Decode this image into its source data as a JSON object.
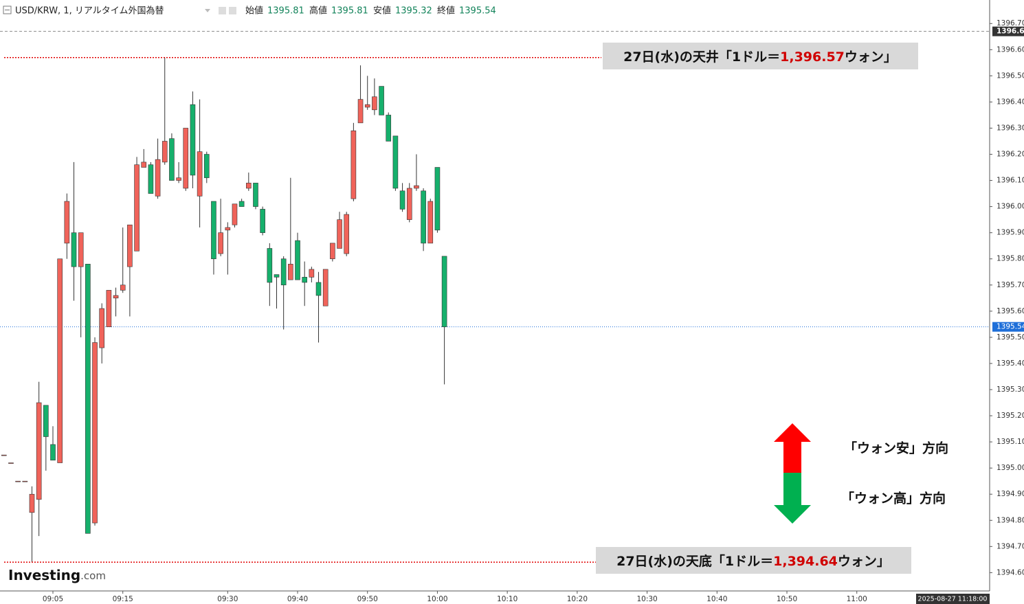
{
  "header": {
    "symbol": "USD/KRW, 1, リアルタイム外国為替",
    "open_label": "始値",
    "open": 1395.81,
    "high_label": "高値",
    "high": 1395.81,
    "low_label": "安値",
    "low": 1395.32,
    "close_label": "終値",
    "close": 1395.54
  },
  "watermark": {
    "brand": "Investing",
    "suffix": ".com"
  },
  "chart_data": {
    "type": "candlestick",
    "x": [
      -2,
      -1,
      0,
      1,
      2,
      3,
      4,
      5,
      6,
      7,
      8,
      9,
      10,
      11,
      12,
      13,
      14,
      15,
      16,
      17,
      18,
      19,
      20,
      21,
      22,
      23,
      24,
      25,
      26,
      27,
      28,
      29,
      30,
      31,
      32,
      33,
      34,
      35,
      36,
      37,
      38,
      39,
      40,
      41,
      42,
      43,
      44,
      45,
      46,
      47,
      48,
      49,
      50,
      51,
      52,
      53,
      54,
      55,
      56,
      57,
      58,
      59,
      60,
      61
    ],
    "open": [
      1395.05,
      1395.02,
      1394.95,
      1394.95,
      1394.83,
      1394.88,
      1395.24,
      1395.09,
      1395.02,
      1395.86,
      1395.9,
      1395.77,
      1395.78,
      1394.79,
      1395.46,
      1395.54,
      1395.65,
      1395.68,
      1395.77,
      1395.83,
      1396.15,
      1396.16,
      1396.04,
      1396.17,
      1396.26,
      1396.1,
      1396.07,
      1396.39,
      1396.04,
      1396.2,
      1396.02,
      1395.82,
      1395.91,
      1395.93,
      1396.02,
      1396.07,
      1396.09,
      1395.99,
      1395.84,
      1395.74,
      1395.8,
      1395.72,
      1395.87,
      1395.73,
      1395.73,
      1395.71,
      1395.62,
      1395.8,
      1395.84,
      1395.82,
      1396.03,
      1396.32,
      1396.38,
      1396.37,
      1396.46,
      1396.35,
      1396.27,
      1396.06,
      1395.95,
      1396.07,
      1396.06,
      1395.86,
      1396.15,
      1395.81
    ],
    "high": [
      1395.05,
      1395.02,
      1394.95,
      1394.95,
      1394.93,
      1395.33,
      1395.24,
      1395.16,
      1395.8,
      1396.05,
      1396.17,
      1395.9,
      1395.78,
      1395.5,
      1395.63,
      1395.68,
      1395.69,
      1395.92,
      1395.93,
      1396.19,
      1396.22,
      1396.17,
      1396.26,
      1396.57,
      1396.28,
      1396.17,
      1396.3,
      1396.44,
      1396.41,
      1396.21,
      1396.02,
      1396.03,
      1395.94,
      1396.01,
      1396.03,
      1396.13,
      1396.09,
      1396.0,
      1395.86,
      1395.74,
      1395.81,
      1396.11,
      1395.9,
      1395.79,
      1395.77,
      1395.75,
      1395.76,
      1395.86,
      1395.98,
      1395.98,
      1396.32,
      1396.54,
      1396.5,
      1396.49,
      1396.46,
      1396.36,
      1396.27,
      1396.09,
      1396.09,
      1396.2,
      1396.07,
      1396.03,
      1396.15,
      1395.81
    ],
    "low": [
      1395.05,
      1395.02,
      1394.95,
      1394.95,
      1394.64,
      1394.74,
      1394.99,
      1395.03,
      1395.02,
      1395.8,
      1395.64,
      1395.5,
      1394.75,
      1394.78,
      1395.4,
      1395.54,
      1395.58,
      1395.67,
      1395.58,
      1395.83,
      1396.15,
      1396.05,
      1396.03,
      1396.16,
      1396.1,
      1396.09,
      1396.06,
      1396.07,
      1395.92,
      1396.09,
      1395.74,
      1395.81,
      1395.74,
      1395.92,
      1396.0,
      1396.06,
      1395.99,
      1395.89,
      1395.62,
      1395.61,
      1395.53,
      1395.72,
      1395.72,
      1395.62,
      1395.71,
      1395.48,
      1395.62,
      1395.79,
      1395.84,
      1395.81,
      1396.02,
      1396.32,
      1396.37,
      1396.35,
      1396.35,
      1396.25,
      1396.06,
      1395.98,
      1395.94,
      1396.06,
      1395.83,
      1395.86,
      1395.9,
      1395.32
    ],
    "close": [
      1395.05,
      1395.02,
      1394.95,
      1394.95,
      1394.9,
      1395.25,
      1395.12,
      1395.03,
      1395.8,
      1396.02,
      1395.77,
      1395.9,
      1394.75,
      1395.48,
      1395.61,
      1395.68,
      1395.66,
      1395.7,
      1395.93,
      1396.16,
      1396.17,
      1396.05,
      1396.18,
      1396.25,
      1396.1,
      1396.11,
      1396.3,
      1396.12,
      1396.21,
      1396.11,
      1395.8,
      1395.9,
      1395.92,
      1396.01,
      1396.0,
      1396.09,
      1396.0,
      1395.9,
      1395.71,
      1395.73,
      1395.7,
      1395.78,
      1395.72,
      1395.71,
      1395.76,
      1395.66,
      1395.76,
      1395.86,
      1395.95,
      1395.97,
      1396.29,
      1396.41,
      1396.39,
      1396.42,
      1396.35,
      1396.25,
      1396.07,
      1395.99,
      1396.07,
      1396.08,
      1395.86,
      1396.02,
      1395.91,
      1395.54
    ],
    "up_color": "#f0635a",
    "down_color": "#16b06c",
    "xlim": [
      -2.57,
      139
    ],
    "xticks": [
      {
        "value": 5,
        "label": "09:05"
      },
      {
        "value": 15,
        "label": "09:15"
      },
      {
        "value": 30,
        "label": "09:30"
      },
      {
        "value": 40,
        "label": "09:40"
      },
      {
        "value": 50,
        "label": "09:50"
      },
      {
        "value": 60,
        "label": "10:00"
      },
      {
        "value": 70,
        "label": "10:10"
      },
      {
        "value": 80,
        "label": "10:20"
      },
      {
        "value": 90,
        "label": "10:30"
      },
      {
        "value": 100,
        "label": "10:40"
      },
      {
        "value": 110,
        "label": "10:50"
      },
      {
        "value": 120,
        "label": "11:00"
      }
    ],
    "ylim": [
      1394.53,
      1396.79
    ],
    "yticks": [
      {
        "value": 1394.6,
        "label": "1394.60"
      },
      {
        "value": 1394.7,
        "label": "1394.70"
      },
      {
        "value": 1394.8,
        "label": "1394.80"
      },
      {
        "value": 1394.9,
        "label": "1394.90"
      },
      {
        "value": 1395.0,
        "label": "1395.00"
      },
      {
        "value": 1395.1,
        "label": "1395.10"
      },
      {
        "value": 1395.2,
        "label": "1395.20"
      },
      {
        "value": 1395.3,
        "label": "1395.30"
      },
      {
        "value": 1395.4,
        "label": "1395.40"
      },
      {
        "value": 1395.5,
        "label": "1395.50"
      },
      {
        "value": 1395.6,
        "label": "1395.60"
      },
      {
        "value": 1395.7,
        "label": "1395.70"
      },
      {
        "value": 1395.8,
        "label": "1395.80"
      },
      {
        "value": 1395.9,
        "label": "1395.90"
      },
      {
        "value": 1396.0,
        "label": "1396.00"
      },
      {
        "value": 1396.1,
        "label": "1396.10"
      },
      {
        "value": 1396.2,
        "label": "1396.20"
      },
      {
        "value": 1396.3,
        "label": "1396.30"
      },
      {
        "value": 1396.4,
        "label": "1396.40"
      },
      {
        "value": 1396.5,
        "label": "1396.50"
      },
      {
        "value": 1396.6,
        "label": "1396.60"
      },
      {
        "value": 1396.7,
        "label": "1396.70"
      }
    ],
    "high_line": 1396.67,
    "last_price": 1395.54,
    "timestamp": "2025-08-27 11:18:00",
    "annotations": [
      {
        "text_before": "27日(水)の天井「1ドル＝",
        "value": 1396.57,
        "label": "1,396.57",
        "text_after": "ウォン」"
      },
      {
        "text_before": "27日(水)の天底「1ドル＝",
        "value": 1394.64,
        "label": "1,394.64",
        "text_after": "ウォン」"
      }
    ],
    "direction_up": "「ウォン安」方向",
    "direction_down": "「ウォン高」方向"
  }
}
